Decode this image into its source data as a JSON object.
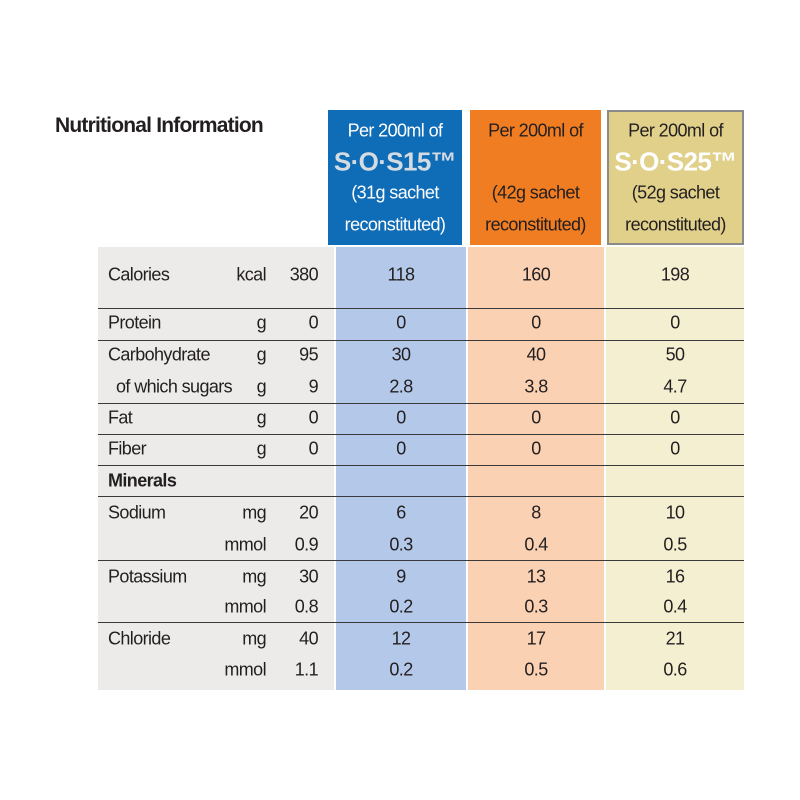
{
  "header": {
    "title": "Nutritional Information"
  },
  "columns": [
    {
      "lines": [
        "Per 200ml of",
        "(31g sachet",
        "reconstituted)"
      ],
      "brand": "S·O·S15™"
    },
    {
      "lines": [
        "Per 200ml of",
        "(42g sachet",
        "reconstituted)"
      ]
    },
    {
      "lines": [
        "Per 200ml of",
        "(52g sachet",
        "reconstituted)"
      ],
      "brand": "S·O·S25™"
    }
  ],
  "rows": [
    {
      "label": "Calories",
      "unit": "kcal",
      "value": 380,
      "values": [
        118,
        160,
        198
      ]
    },
    {
      "label": "Protein",
      "unit": "g",
      "value": 0,
      "values": [
        0,
        0,
        0
      ]
    },
    {
      "label": "Carbohydrate",
      "unit": "g",
      "value": 95,
      "values": [
        30,
        40,
        50
      ]
    },
    {
      "label": "of which sugars",
      "unit": "g",
      "value": 9,
      "values": [
        2.8,
        3.8,
        4.7
      ]
    },
    {
      "label": "Fat",
      "unit": "g",
      "value": 0,
      "values": [
        0,
        0,
        0
      ]
    },
    {
      "label": "Fiber",
      "unit": "g",
      "value": 0,
      "values": [
        0,
        0,
        0
      ]
    },
    {
      "label": "Minerals"
    },
    {
      "label": "Sodium",
      "unit": "mg",
      "value": 20,
      "values": [
        6,
        8,
        10
      ]
    },
    {
      "unit": "mmol",
      "value": 0.9,
      "values": [
        0.3,
        0.4,
        0.5
      ]
    },
    {
      "label": "Potassium",
      "unit": "mg",
      "value": 30,
      "values": [
        9,
        13,
        16
      ]
    },
    {
      "unit": "mmol",
      "value": 0.8,
      "values": [
        0.2,
        0.3,
        0.4
      ]
    },
    {
      "label": "Chloride",
      "unit": "mg",
      "value": 40,
      "values": [
        12,
        17,
        21
      ]
    },
    {
      "unit": "mmol",
      "value": 1.1,
      "values": [
        0.2,
        0.5,
        0.6
      ]
    }
  ]
}
